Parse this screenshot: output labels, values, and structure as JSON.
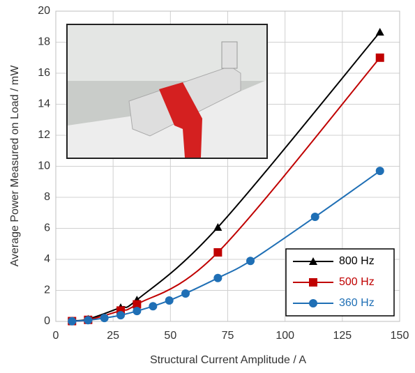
{
  "chart_data": {
    "type": "line",
    "xlabel": "Structural Current Amplitude / A",
    "ylabel": "Average Power Measured on Load / mW",
    "xlim": [
      0,
      150
    ],
    "xticks": [
      0,
      25,
      50,
      75,
      100,
      125,
      150
    ],
    "ylim": [
      0,
      20
    ],
    "yticks": [
      0,
      2,
      4,
      6,
      8,
      10,
      12,
      14,
      16,
      18,
      20
    ],
    "grid": true,
    "legend": "lower right",
    "series": [
      {
        "name": "800 Hz",
        "color": "#000000",
        "marker": "triangle",
        "x": [
          7.07,
          14.1,
          28.3,
          35.4,
          70.7,
          141.4
        ],
        "values": [
          0.04,
          0.15,
          0.9,
          1.39,
          6.07,
          18.65
        ]
      },
      {
        "name": "500 Hz",
        "color": "#c00000",
        "marker": "square",
        "x": [
          7.07,
          14.1,
          28.3,
          35.4,
          70.7,
          141.4
        ],
        "values": [
          0.02,
          0.1,
          0.7,
          1.1,
          4.45,
          17.0
        ]
      },
      {
        "name": "360 Hz",
        "color": "#1f6fb5",
        "marker": "circle",
        "x": [
          7.07,
          14.1,
          21.2,
          28.3,
          35.4,
          42.4,
          49.5,
          56.6,
          70.7,
          84.9,
          113.1,
          141.4
        ],
        "values": [
          0.01,
          0.08,
          0.22,
          0.4,
          0.67,
          0.98,
          1.35,
          1.8,
          2.8,
          3.9,
          6.74,
          9.7
        ]
      }
    ]
  }
}
